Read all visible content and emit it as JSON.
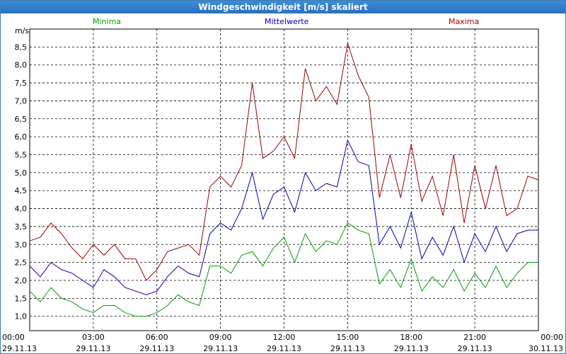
{
  "window": {
    "title": "Windgeschwindigkeit [m/s] skaliert"
  },
  "chart_data": {
    "type": "line",
    "title": "Windgeschwindigkeit [m/s] skaliert",
    "ylabel": "m/s",
    "xlabel": "",
    "ylim": [
      0.6,
      9.0
    ],
    "xlim": [
      0,
      24
    ],
    "grid": true,
    "y_ticks": [
      "1,0",
      "1,5",
      "2,0",
      "2,5",
      "3,0",
      "3,5",
      "4,0",
      "4,5",
      "5,0",
      "5,5",
      "6,0",
      "6,5",
      "7,0",
      "7,5",
      "8,0",
      "8,5"
    ],
    "x_ticks": [
      {
        "time": "00:00",
        "date": "29.11.13"
      },
      {
        "time": "03:00",
        "date": "29.11.13"
      },
      {
        "time": "06:00",
        "date": "29.11.13"
      },
      {
        "time": "09:00",
        "date": "29.11.13"
      },
      {
        "time": "12:00",
        "date": "29.11.13"
      },
      {
        "time": "15:00",
        "date": "29.11.13"
      },
      {
        "time": "18:00",
        "date": "29.11.13"
      },
      {
        "time": "21:00",
        "date": "29.11.13"
      },
      {
        "time": "00:00",
        "date": "30.11.13"
      }
    ],
    "legend": [
      "Minima",
      "Mittelwerte",
      "Maxima"
    ],
    "series": [
      {
        "name": "Maxima",
        "color": "#a00000",
        "x": [
          0,
          0.5,
          1,
          1.5,
          2,
          2.5,
          3,
          3.5,
          4,
          4.5,
          5,
          5.5,
          6,
          6.5,
          7,
          7.5,
          8,
          8.5,
          9,
          9.5,
          10,
          10.5,
          11,
          11.5,
          12,
          12.5,
          13,
          13.5,
          14,
          14.5,
          15,
          15.5,
          16,
          16.5,
          17,
          17.5,
          18,
          18.5,
          19,
          19.5,
          20,
          20.5,
          21,
          21.5,
          22,
          22.5,
          23,
          23.5,
          24
        ],
        "values": [
          3.1,
          3.2,
          3.6,
          3.3,
          2.9,
          2.6,
          3.0,
          2.7,
          3.0,
          2.6,
          2.6,
          2.0,
          2.3,
          2.8,
          2.9,
          3.0,
          2.7,
          4.6,
          4.9,
          4.6,
          5.2,
          7.5,
          5.4,
          5.6,
          6.0,
          5.4,
          7.9,
          7.0,
          7.4,
          6.9,
          8.6,
          7.7,
          7.1,
          4.3,
          5.5,
          4.3,
          5.8,
          4.2,
          4.9,
          3.8,
          5.5,
          3.6,
          5.2,
          4.0,
          5.2,
          3.8,
          4.0,
          4.9,
          4.8
        ]
      },
      {
        "name": "Mittelwerte",
        "color": "#0000b0",
        "x": [
          0,
          0.5,
          1,
          1.5,
          2,
          2.5,
          3,
          3.5,
          4,
          4.5,
          5,
          5.5,
          6,
          6.5,
          7,
          7.5,
          8,
          8.5,
          9,
          9.5,
          10,
          10.5,
          11,
          11.5,
          12,
          12.5,
          13,
          13.5,
          14,
          14.5,
          15,
          15.5,
          16,
          16.5,
          17,
          17.5,
          18,
          18.5,
          19,
          19.5,
          20,
          20.5,
          21,
          21.5,
          22,
          22.5,
          23,
          23.5,
          24
        ],
        "values": [
          2.4,
          2.1,
          2.5,
          2.3,
          2.2,
          2.0,
          1.8,
          2.3,
          2.1,
          1.8,
          1.7,
          1.6,
          1.7,
          2.1,
          2.4,
          2.2,
          2.1,
          3.3,
          3.6,
          3.4,
          4.0,
          5.0,
          3.7,
          4.4,
          4.6,
          3.9,
          5.0,
          4.5,
          4.7,
          4.6,
          5.9,
          5.3,
          5.2,
          3.0,
          3.5,
          2.9,
          3.9,
          2.6,
          3.2,
          2.7,
          3.5,
          2.5,
          3.3,
          2.8,
          3.5,
          2.8,
          3.3,
          3.4,
          3.4
        ]
      },
      {
        "name": "Minima",
        "color": "#00a000",
        "x": [
          0,
          0.5,
          1,
          1.5,
          2,
          2.5,
          3,
          3.5,
          4,
          4.5,
          5,
          5.5,
          6,
          6.5,
          7,
          7.5,
          8,
          8.5,
          9,
          9.5,
          10,
          10.5,
          11,
          11.5,
          12,
          12.5,
          13,
          13.5,
          14,
          14.5,
          15,
          15.5,
          16,
          16.5,
          17,
          17.5,
          18,
          18.5,
          19,
          19.5,
          20,
          20.5,
          21,
          21.5,
          22,
          22.5,
          23,
          23.5,
          24
        ],
        "values": [
          1.7,
          1.4,
          1.8,
          1.5,
          1.4,
          1.2,
          1.1,
          1.3,
          1.3,
          1.1,
          1.0,
          1.0,
          1.1,
          1.3,
          1.6,
          1.4,
          1.3,
          2.4,
          2.4,
          2.2,
          2.7,
          2.8,
          2.4,
          2.9,
          3.2,
          2.5,
          3.3,
          2.8,
          3.1,
          3.0,
          3.6,
          3.4,
          3.3,
          1.9,
          2.3,
          1.8,
          2.6,
          1.7,
          2.1,
          1.8,
          2.3,
          1.7,
          2.2,
          1.8,
          2.4,
          1.8,
          2.2,
          2.5,
          2.5
        ]
      }
    ]
  }
}
